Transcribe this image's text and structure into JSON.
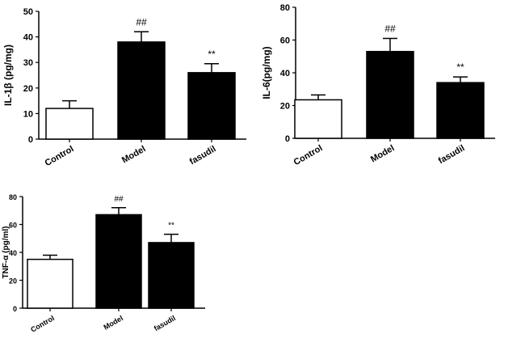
{
  "chart_data": [
    {
      "type": "bar",
      "ylabel": "IL-1β (pg/mg)",
      "ylim": [
        0,
        50
      ],
      "yticks": [
        0,
        10,
        20,
        30,
        40,
        50
      ],
      "categories": [
        "Control",
        "Model",
        "fasudil"
      ],
      "values": [
        12,
        38,
        26
      ],
      "errors": [
        3,
        4,
        3.5
      ],
      "fills": [
        "#ffffff",
        "#000000",
        "#000000"
      ],
      "annotations": [
        "",
        "##",
        "**"
      ]
    },
    {
      "type": "bar",
      "ylabel": "IL-6(pg/mg)",
      "ylim": [
        0,
        80
      ],
      "yticks": [
        0,
        20,
        40,
        60,
        80
      ],
      "categories": [
        "Control",
        "Model",
        "fasudil"
      ],
      "values": [
        23.5,
        53,
        34
      ],
      "errors": [
        3,
        8,
        3.5
      ],
      "fills": [
        "#ffffff",
        "#000000",
        "#000000"
      ],
      "annotations": [
        "",
        "##",
        "**"
      ]
    },
    {
      "type": "bar",
      "ylabel": "TNF-α (pg/ml)",
      "ylim": [
        0,
        80
      ],
      "yticks": [
        0,
        20,
        40,
        60,
        80
      ],
      "categories": [
        "Control",
        "Model",
        "fasudil"
      ],
      "values": [
        35,
        67,
        47
      ],
      "errors": [
        3,
        5,
        6
      ],
      "fills": [
        "#ffffff",
        "#000000",
        "#000000"
      ],
      "annotations": [
        "",
        "##",
        "**"
      ]
    }
  ]
}
